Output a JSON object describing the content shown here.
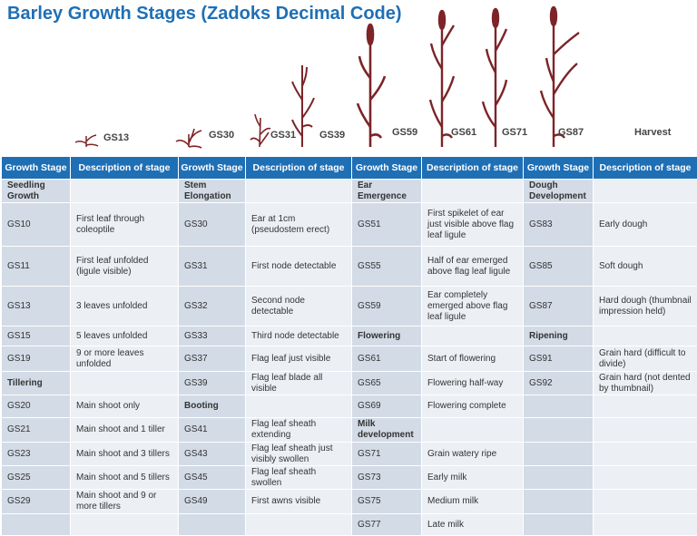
{
  "title": "Barley Growth Stages (Zadoks Decimal Code)",
  "plant_labels": [
    "GS13",
    "GS30",
    "GS31",
    "GS39",
    "GS59",
    "GS61",
    "GS71",
    "GS87",
    "Harvest"
  ],
  "headers": [
    "Growth Stage",
    "Description of stage",
    "Growth Stage",
    "Description of stage",
    "Growth Stage",
    "Description of stage",
    "Growth Stage",
    "Description of stage"
  ],
  "rows": [
    [
      "Seedling Growth",
      "",
      "Stem Elongation",
      "",
      "Ear Emergence",
      "",
      "Dough Development",
      ""
    ],
    [
      "GS10",
      "First leaf through coleoptile",
      "GS30",
      "Ear at 1cm (pseudostem erect)",
      "GS51",
      "First spikelet of ear just visible above flag leaf ligule",
      "GS83",
      "Early dough"
    ],
    [
      "GS11",
      "First leaf unfolded (ligule visible)",
      "GS31",
      "First node detectable",
      "GS55",
      "Half of ear emerged above flag leaf ligule",
      "GS85",
      "Soft dough"
    ],
    [
      "GS13",
      "3 leaves unfolded",
      "GS32",
      "Second node detectable",
      "GS59",
      "Ear completely emerged above flag leaf ligule",
      "GS87",
      "Hard dough (thumbnail impression held)"
    ],
    [
      "GS15",
      "5 leaves unfolded",
      "GS33",
      "Third node detectable",
      "Flowering",
      "",
      "Ripening",
      ""
    ],
    [
      "GS19",
      "9 or more leaves unfolded",
      "GS37",
      "Flag leaf just visible",
      "GS61",
      "Start of flowering",
      "GS91",
      "Grain hard (difficult to divide)"
    ],
    [
      "Tillering",
      "",
      "GS39",
      "Flag leaf blade all visible",
      "GS65",
      "Flowering half-way",
      "GS92",
      "Grain hard (not dented by thumbnail)"
    ],
    [
      "GS20",
      "Main shoot only",
      "Booting",
      "",
      "GS69",
      "Flowering complete",
      "",
      ""
    ],
    [
      "GS21",
      "Main shoot and 1 tiller",
      "GS41",
      "Flag leaf sheath extending",
      "Milk development",
      "",
      "",
      ""
    ],
    [
      "GS23",
      "Main shoot and 3 tillers",
      "GS43",
      "Flag leaf sheath just visibly swollen",
      "GS71",
      "Grain watery ripe",
      "",
      ""
    ],
    [
      "GS25",
      "Main shoot and 5 tillers",
      "GS45",
      "Flag leaf sheath swollen",
      "GS73",
      "Early milk",
      "",
      ""
    ],
    [
      "GS29",
      "Main shoot and 9 or more tillers",
      "GS49",
      "First awns visible",
      "GS75",
      "Medium milk",
      "",
      ""
    ],
    [
      "",
      "",
      "",
      "",
      "GS77",
      "Late milk",
      "",
      ""
    ]
  ],
  "header_cells": [
    "0-0",
    "0-2",
    "0-4",
    "0-6",
    "4-4",
    "4-6",
    "6-0",
    "7-2",
    "8-4"
  ],
  "colors": {
    "accent": "#1f6fb5",
    "stage_cell": "#d3dbe6",
    "desc_cell": "#ecf0f5",
    "plant": "#7d2428"
  }
}
